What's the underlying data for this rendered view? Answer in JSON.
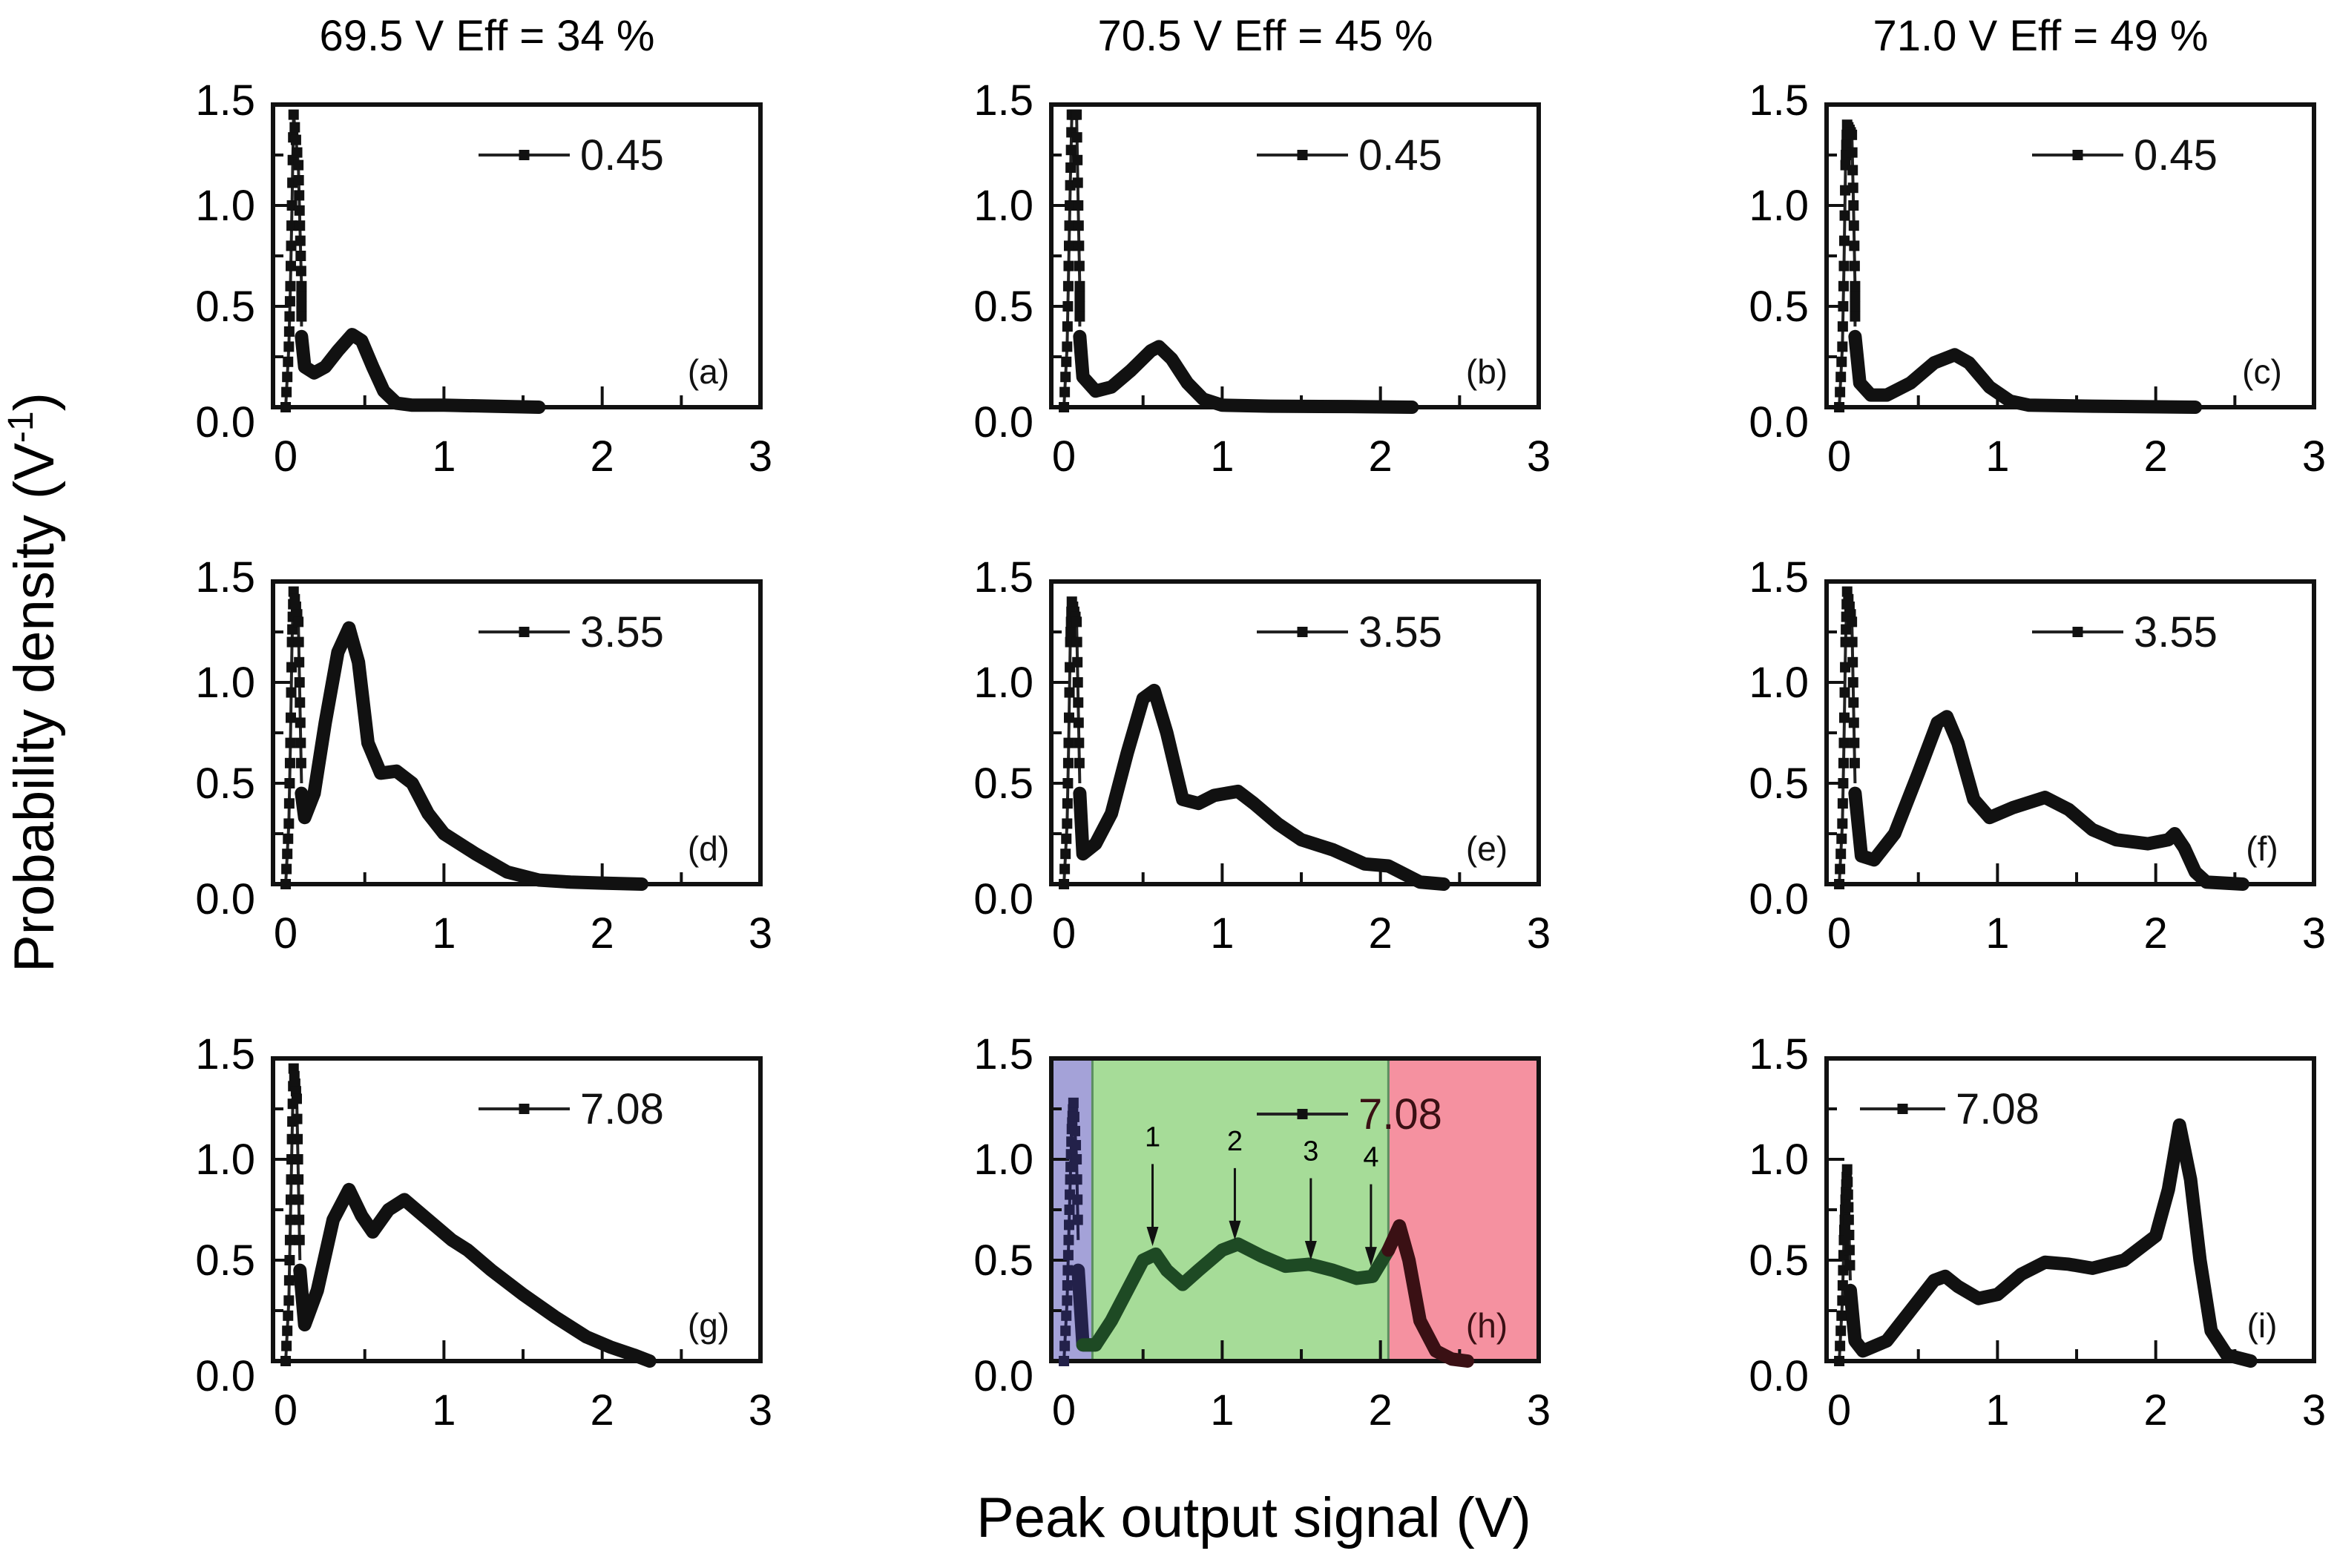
{
  "chart_data": {
    "type": "line",
    "layout": "3x3 grid",
    "xlabel": "Peak output signal (V)",
    "ylabel": "Probability density (V",
    "ylabel_sup": "-1",
    "ylabel_close": ")",
    "xlim": [
      -0.08,
      3.0
    ],
    "ylim": [
      0,
      1.5
    ],
    "xticks": [
      "0",
      "1",
      "2",
      "3"
    ],
    "xtick_values": [
      0,
      1,
      2,
      3
    ],
    "yticks": [
      "0.0",
      "0.5",
      "1.0",
      "1.5"
    ],
    "ytick_values": [
      0,
      0.5,
      1.0,
      1.5
    ],
    "column_titles": [
      "69.5 V   Eff = 34 %",
      "70.5 V   Eff = 45 %",
      "71.0 V   Eff = 49 %"
    ],
    "grid": false,
    "legend_placement": "top-right",
    "panels": [
      {
        "id": "a",
        "label": "(a)",
        "legend": "0.45",
        "row": 0,
        "col": 0,
        "spike": [
          [
            0.0,
            0.0
          ],
          [
            0.02,
            0.3
          ],
          [
            0.03,
            0.6
          ],
          [
            0.04,
            1.0
          ],
          [
            0.05,
            1.45
          ],
          [
            0.08,
            1.2
          ],
          [
            0.09,
            0.9
          ],
          [
            0.1,
            0.6
          ],
          [
            0.1,
            0.4
          ]
        ],
        "curve": [
          [
            0.1,
            0.35
          ],
          [
            0.12,
            0.2
          ],
          [
            0.18,
            0.17
          ],
          [
            0.25,
            0.2
          ],
          [
            0.33,
            0.28
          ],
          [
            0.42,
            0.36
          ],
          [
            0.48,
            0.33
          ],
          [
            0.55,
            0.2
          ],
          [
            0.62,
            0.08
          ],
          [
            0.7,
            0.02
          ],
          [
            0.8,
            0.01
          ],
          [
            1.0,
            0.01
          ],
          [
            1.3,
            0.005
          ],
          [
            1.6,
            0.0
          ]
        ]
      },
      {
        "id": "b",
        "label": "(b)",
        "legend": "0.45",
        "row": 0,
        "col": 1,
        "spike": [
          [
            0.0,
            0.0
          ],
          [
            0.02,
            0.3
          ],
          [
            0.03,
            0.7
          ],
          [
            0.04,
            1.1
          ],
          [
            0.05,
            1.45
          ],
          [
            0.08,
            1.45
          ],
          [
            0.09,
            1.0
          ],
          [
            0.1,
            0.6
          ],
          [
            0.1,
            0.4
          ]
        ],
        "curve": [
          [
            0.1,
            0.35
          ],
          [
            0.12,
            0.15
          ],
          [
            0.2,
            0.08
          ],
          [
            0.3,
            0.1
          ],
          [
            0.42,
            0.18
          ],
          [
            0.55,
            0.28
          ],
          [
            0.6,
            0.3
          ],
          [
            0.68,
            0.24
          ],
          [
            0.78,
            0.12
          ],
          [
            0.88,
            0.04
          ],
          [
            1.0,
            0.01
          ],
          [
            1.3,
            0.005
          ],
          [
            1.8,
            0.003
          ],
          [
            2.2,
            0.0
          ]
        ]
      },
      {
        "id": "c",
        "label": "(c)",
        "legend": "0.45",
        "row": 0,
        "col": 2,
        "spike": [
          [
            0.0,
            0.0
          ],
          [
            0.02,
            0.3
          ],
          [
            0.03,
            0.7
          ],
          [
            0.04,
            1.2
          ],
          [
            0.05,
            1.4
          ],
          [
            0.08,
            1.35
          ],
          [
            0.09,
            1.0
          ],
          [
            0.1,
            0.6
          ],
          [
            0.1,
            0.4
          ]
        ],
        "curve": [
          [
            0.1,
            0.35
          ],
          [
            0.13,
            0.12
          ],
          [
            0.2,
            0.06
          ],
          [
            0.3,
            0.06
          ],
          [
            0.45,
            0.12
          ],
          [
            0.6,
            0.22
          ],
          [
            0.73,
            0.26
          ],
          [
            0.82,
            0.22
          ],
          [
            0.95,
            0.1
          ],
          [
            1.08,
            0.03
          ],
          [
            1.2,
            0.01
          ],
          [
            1.6,
            0.005
          ],
          [
            2.25,
            0.0
          ]
        ]
      },
      {
        "id": "d",
        "label": "(d)",
        "legend": "3.55",
        "row": 1,
        "col": 0,
        "spike": [
          [
            0.0,
            0.0
          ],
          [
            0.02,
            0.3
          ],
          [
            0.03,
            0.7
          ],
          [
            0.04,
            1.2
          ],
          [
            0.05,
            1.45
          ],
          [
            0.08,
            1.3
          ],
          [
            0.09,
            0.9
          ],
          [
            0.1,
            0.5
          ]
        ],
        "curve": [
          [
            0.1,
            0.45
          ],
          [
            0.12,
            0.33
          ],
          [
            0.18,
            0.45
          ],
          [
            0.25,
            0.8
          ],
          [
            0.33,
            1.15
          ],
          [
            0.4,
            1.27
          ],
          [
            0.46,
            1.1
          ],
          [
            0.52,
            0.7
          ],
          [
            0.6,
            0.55
          ],
          [
            0.7,
            0.56
          ],
          [
            0.8,
            0.5
          ],
          [
            0.9,
            0.35
          ],
          [
            1.0,
            0.25
          ],
          [
            1.2,
            0.15
          ],
          [
            1.4,
            0.06
          ],
          [
            1.6,
            0.02
          ],
          [
            1.8,
            0.01
          ],
          [
            2.0,
            0.005
          ],
          [
            2.25,
            0.0
          ]
        ]
      },
      {
        "id": "e",
        "label": "(e)",
        "legend": "3.55",
        "row": 1,
        "col": 1,
        "spike": [
          [
            0.0,
            0.0
          ],
          [
            0.02,
            0.3
          ],
          [
            0.03,
            0.7
          ],
          [
            0.04,
            1.2
          ],
          [
            0.05,
            1.4
          ],
          [
            0.08,
            1.3
          ],
          [
            0.09,
            0.9
          ],
          [
            0.1,
            0.5
          ]
        ],
        "curve": [
          [
            0.1,
            0.45
          ],
          [
            0.12,
            0.15
          ],
          [
            0.2,
            0.2
          ],
          [
            0.3,
            0.35
          ],
          [
            0.4,
            0.65
          ],
          [
            0.5,
            0.92
          ],
          [
            0.57,
            0.96
          ],
          [
            0.65,
            0.75
          ],
          [
            0.75,
            0.42
          ],
          [
            0.85,
            0.4
          ],
          [
            0.95,
            0.44
          ],
          [
            1.1,
            0.46
          ],
          [
            1.2,
            0.4
          ],
          [
            1.35,
            0.3
          ],
          [
            1.5,
            0.22
          ],
          [
            1.7,
            0.17
          ],
          [
            1.9,
            0.1
          ],
          [
            2.05,
            0.09
          ],
          [
            2.15,
            0.05
          ],
          [
            2.25,
            0.01
          ],
          [
            2.4,
            0.0
          ]
        ]
      },
      {
        "id": "f",
        "label": "(f)",
        "legend": "3.55",
        "row": 1,
        "col": 2,
        "spike": [
          [
            0.0,
            0.0
          ],
          [
            0.02,
            0.3
          ],
          [
            0.03,
            0.7
          ],
          [
            0.04,
            1.2
          ],
          [
            0.05,
            1.45
          ],
          [
            0.08,
            1.3
          ],
          [
            0.09,
            0.9
          ],
          [
            0.1,
            0.5
          ]
        ],
        "curve": [
          [
            0.1,
            0.45
          ],
          [
            0.14,
            0.14
          ],
          [
            0.22,
            0.12
          ],
          [
            0.35,
            0.25
          ],
          [
            0.5,
            0.55
          ],
          [
            0.62,
            0.8
          ],
          [
            0.68,
            0.83
          ],
          [
            0.75,
            0.7
          ],
          [
            0.85,
            0.42
          ],
          [
            0.95,
            0.33
          ],
          [
            1.1,
            0.38
          ],
          [
            1.3,
            0.43
          ],
          [
            1.45,
            0.37
          ],
          [
            1.6,
            0.27
          ],
          [
            1.75,
            0.22
          ],
          [
            1.95,
            0.2
          ],
          [
            2.08,
            0.22
          ],
          [
            2.12,
            0.25
          ],
          [
            2.18,
            0.18
          ],
          [
            2.25,
            0.06
          ],
          [
            2.32,
            0.01
          ],
          [
            2.55,
            0.0
          ]
        ]
      },
      {
        "id": "g",
        "label": "(g)",
        "legend": "7.08",
        "row": 2,
        "col": 0,
        "spike": [
          [
            0.0,
            0.0
          ],
          [
            0.02,
            0.3
          ],
          [
            0.03,
            0.7
          ],
          [
            0.04,
            1.1
          ],
          [
            0.05,
            1.45
          ],
          [
            0.07,
            1.3
          ],
          [
            0.08,
            0.9
          ],
          [
            0.09,
            0.5
          ]
        ],
        "curve": [
          [
            0.09,
            0.45
          ],
          [
            0.12,
            0.18
          ],
          [
            0.2,
            0.35
          ],
          [
            0.3,
            0.7
          ],
          [
            0.4,
            0.85
          ],
          [
            0.48,
            0.72
          ],
          [
            0.55,
            0.64
          ],
          [
            0.65,
            0.75
          ],
          [
            0.75,
            0.8
          ],
          [
            0.9,
            0.7
          ],
          [
            1.05,
            0.6
          ],
          [
            1.15,
            0.55
          ],
          [
            1.3,
            0.45
          ],
          [
            1.5,
            0.33
          ],
          [
            1.7,
            0.22
          ],
          [
            1.9,
            0.12
          ],
          [
            2.05,
            0.07
          ],
          [
            2.2,
            0.03
          ],
          [
            2.3,
            0.0
          ]
        ]
      },
      {
        "id": "h",
        "label": "(h)",
        "legend": "7.08",
        "row": 2,
        "col": 1,
        "regions": [
          {
            "name": "region-blue",
            "x0": -0.08,
            "x1": 0.18,
            "color": "#a4a2d8"
          },
          {
            "name": "region-green",
            "x0": 0.18,
            "x1": 2.05,
            "color": "#a6dc98"
          },
          {
            "name": "region-red",
            "x0": 2.05,
            "x1": 3.0,
            "color": "#f591a0"
          }
        ],
        "spike": [
          [
            0.0,
            0.0
          ],
          [
            0.02,
            0.3
          ],
          [
            0.03,
            0.6
          ],
          [
            0.04,
            0.9
          ],
          [
            0.05,
            1.15
          ],
          [
            0.06,
            1.28
          ],
          [
            0.08,
            1.0
          ],
          [
            0.09,
            0.6
          ]
        ],
        "curve": [
          [
            0.09,
            0.45
          ],
          [
            0.12,
            0.08
          ],
          [
            0.2,
            0.08
          ],
          [
            0.3,
            0.2
          ],
          [
            0.4,
            0.35
          ],
          [
            0.5,
            0.5
          ],
          [
            0.58,
            0.53
          ],
          [
            0.65,
            0.45
          ],
          [
            0.75,
            0.38
          ],
          [
            0.85,
            0.45
          ],
          [
            1.0,
            0.55
          ],
          [
            1.1,
            0.58
          ],
          [
            1.25,
            0.52
          ],
          [
            1.4,
            0.47
          ],
          [
            1.55,
            0.48
          ],
          [
            1.7,
            0.45
          ],
          [
            1.85,
            0.41
          ],
          [
            1.95,
            0.42
          ],
          [
            2.05,
            0.55
          ],
          [
            2.12,
            0.67
          ],
          [
            2.18,
            0.5
          ],
          [
            2.25,
            0.2
          ],
          [
            2.35,
            0.05
          ],
          [
            2.45,
            0.01
          ],
          [
            2.55,
            0.0
          ]
        ],
        "curve_colors": {
          "blue": "#23214a",
          "green": "#1e4a24",
          "red": "#3a1014"
        },
        "annotations": [
          {
            "text": "1",
            "x": 0.56,
            "y_arrow_tip": 0.57,
            "y_text": 1.05
          },
          {
            "text": "2",
            "x": 1.08,
            "y_arrow_tip": 0.6,
            "y_text": 1.03
          },
          {
            "text": "3",
            "x": 1.56,
            "y_arrow_tip": 0.5,
            "y_text": 0.98
          },
          {
            "text": "4",
            "x": 1.94,
            "y_arrow_tip": 0.47,
            "y_text": 0.95
          }
        ]
      },
      {
        "id": "i",
        "label": "(i)",
        "legend": "7.08",
        "row": 2,
        "col": 2,
        "spike": [
          [
            0.0,
            0.0
          ],
          [
            0.02,
            0.3
          ],
          [
            0.03,
            0.6
          ],
          [
            0.04,
            0.8
          ],
          [
            0.05,
            0.95
          ],
          [
            0.06,
            0.7
          ],
          [
            0.07,
            0.4
          ]
        ],
        "curve": [
          [
            0.07,
            0.35
          ],
          [
            0.1,
            0.1
          ],
          [
            0.15,
            0.05
          ],
          [
            0.3,
            0.1
          ],
          [
            0.45,
            0.25
          ],
          [
            0.6,
            0.4
          ],
          [
            0.67,
            0.42
          ],
          [
            0.75,
            0.37
          ],
          [
            0.88,
            0.31
          ],
          [
            1.0,
            0.33
          ],
          [
            1.15,
            0.43
          ],
          [
            1.3,
            0.49
          ],
          [
            1.45,
            0.48
          ],
          [
            1.6,
            0.46
          ],
          [
            1.8,
            0.5
          ],
          [
            2.0,
            0.62
          ],
          [
            2.08,
            0.85
          ],
          [
            2.15,
            1.17
          ],
          [
            2.22,
            0.9
          ],
          [
            2.28,
            0.5
          ],
          [
            2.35,
            0.15
          ],
          [
            2.45,
            0.03
          ],
          [
            2.6,
            0.0
          ]
        ]
      }
    ]
  }
}
